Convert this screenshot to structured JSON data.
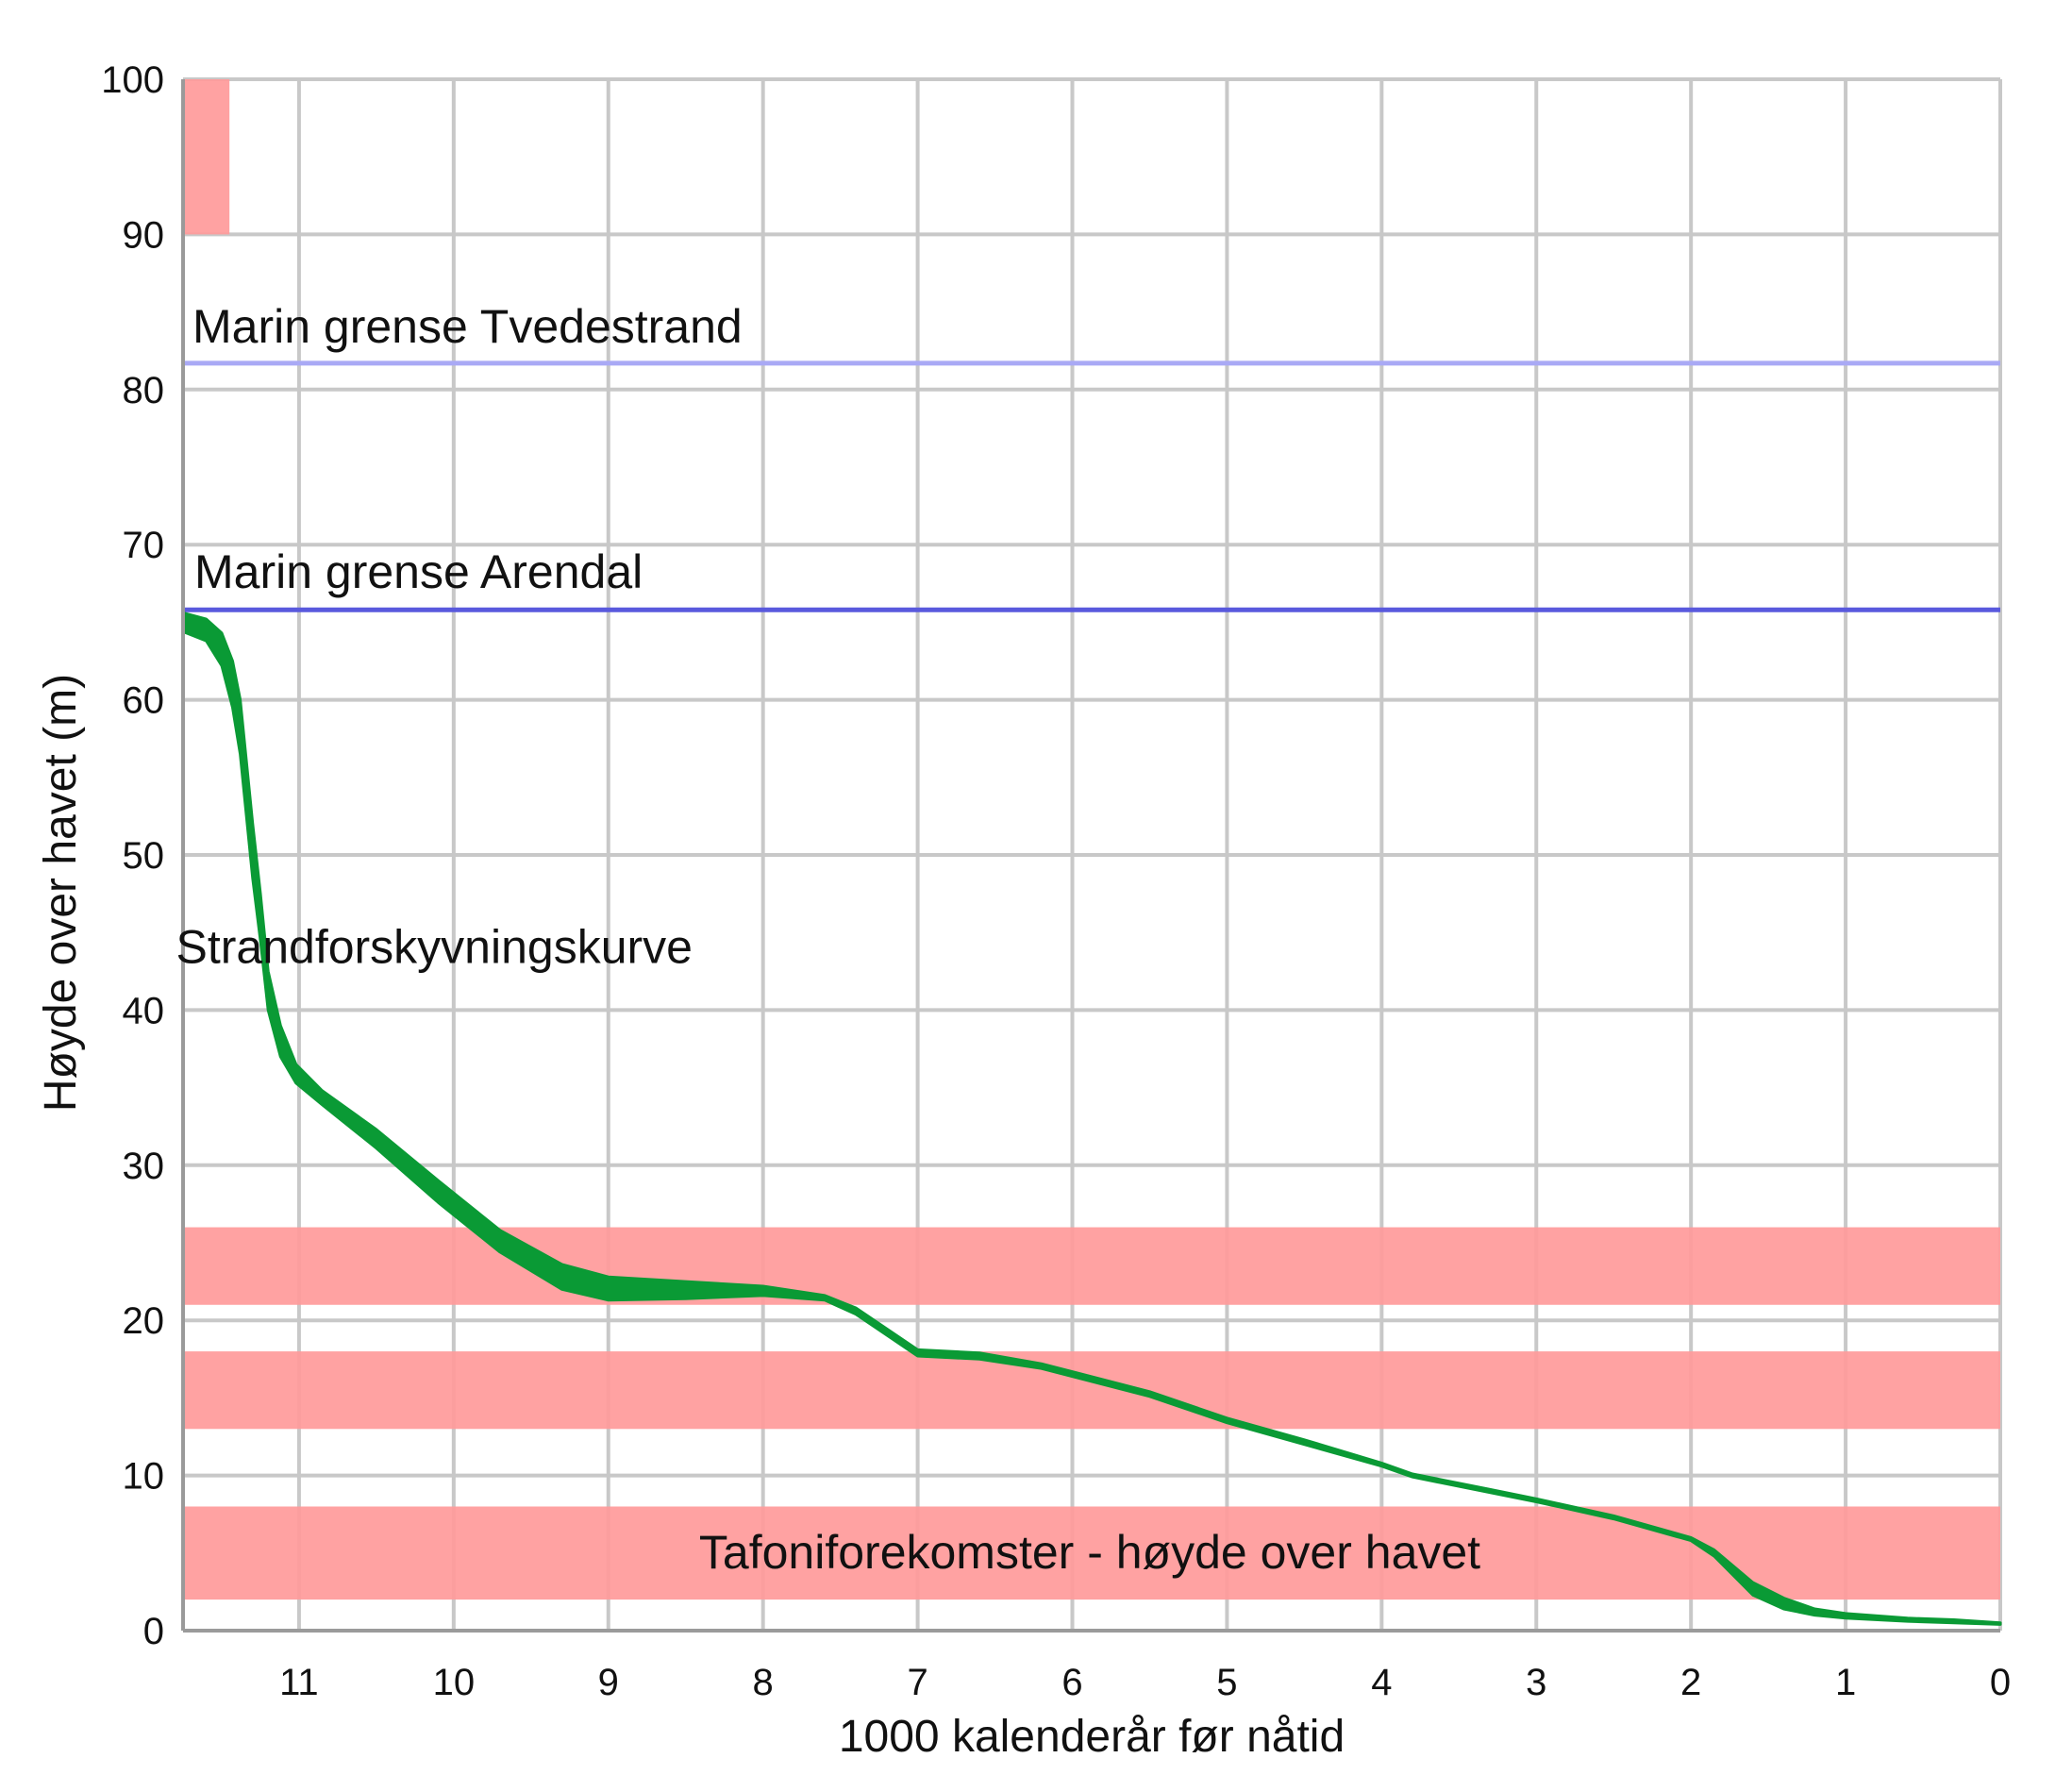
{
  "chart_data": {
    "type": "line",
    "xlabel": "1000 kalenderår før nåtid",
    "ylabel": "Høyde over havet (m)",
    "xlim": [
      11.75,
      0
    ],
    "ylim": [
      0,
      100
    ],
    "x_ticks": [
      11,
      10,
      9,
      8,
      7,
      6,
      5,
      4,
      3,
      2,
      1,
      0
    ],
    "y_ticks": [
      0,
      10,
      20,
      30,
      40,
      50,
      60,
      70,
      80,
      90,
      100
    ],
    "grid": true,
    "horizontal_lines": [
      {
        "label": "Marin grense Tvedestrand",
        "y": 81.7,
        "color": "#a9a9f5"
      },
      {
        "label": "Marin grense Arendal",
        "y": 65.8,
        "color": "#5959dd"
      }
    ],
    "bands": [
      {
        "x": [
          11.75,
          11.45
        ],
        "y": [
          90,
          100
        ],
        "color": "#ff9a9a"
      },
      {
        "x": [
          11.75,
          0
        ],
        "y": [
          21,
          26
        ],
        "color": "#ff9a9a"
      },
      {
        "x": [
          11.75,
          0
        ],
        "y": [
          13,
          18
        ],
        "color": "#ff9a9a"
      },
      {
        "x": [
          11.75,
          0
        ],
        "y": [
          2,
          8
        ],
        "color": "#ff9a9a",
        "label": "Tafoniforekomster - høyde over havet"
      }
    ],
    "series": [
      {
        "name": "Strandforskyvningskurve",
        "color": "#0a9a35",
        "upper": [
          [
            11.75,
            65.6
          ],
          [
            11.6,
            65.2
          ],
          [
            11.5,
            64.3
          ],
          [
            11.43,
            62.5
          ],
          [
            11.38,
            60
          ],
          [
            11.34,
            56
          ],
          [
            11.3,
            52
          ],
          [
            11.25,
            47.5
          ],
          [
            11.2,
            42.5
          ],
          [
            11.12,
            39
          ],
          [
            11.02,
            36.5
          ],
          [
            10.85,
            34.8
          ],
          [
            10.5,
            32.3
          ],
          [
            10.1,
            29
          ],
          [
            9.7,
            25.8
          ],
          [
            9.3,
            23.6
          ],
          [
            9.0,
            22.8
          ],
          [
            8.5,
            22.5
          ],
          [
            8.0,
            22.2
          ],
          [
            7.6,
            21.6
          ],
          [
            7.4,
            20.8
          ],
          [
            7.0,
            18.1
          ],
          [
            6.6,
            17.9
          ],
          [
            6.2,
            17.2
          ],
          [
            5.5,
            15.4
          ],
          [
            5.0,
            13.7
          ],
          [
            4.5,
            12.3
          ],
          [
            4.0,
            10.8
          ],
          [
            3.8,
            10.1
          ],
          [
            3.3,
            9.1
          ],
          [
            3.0,
            8.5
          ],
          [
            2.5,
            7.4
          ],
          [
            2.0,
            6.0
          ],
          [
            1.85,
            5.2
          ],
          [
            1.6,
            3.1
          ],
          [
            1.4,
            2.1
          ],
          [
            1.2,
            1.4
          ],
          [
            1.0,
            1.1
          ],
          [
            0.6,
            0.8
          ],
          [
            0.3,
            0.7
          ],
          [
            0,
            0.5
          ]
        ],
        "lower": [
          [
            11.75,
            64.4
          ],
          [
            11.6,
            63.8
          ],
          [
            11.5,
            62.2
          ],
          [
            11.43,
            59.5
          ],
          [
            11.38,
            56.5
          ],
          [
            11.34,
            52.5
          ],
          [
            11.3,
            48.5
          ],
          [
            11.25,
            44.5
          ],
          [
            11.2,
            40
          ],
          [
            11.12,
            37
          ],
          [
            11.02,
            35.3
          ],
          [
            10.85,
            33.9
          ],
          [
            10.5,
            31.1
          ],
          [
            10.1,
            27.6
          ],
          [
            9.7,
            24.4
          ],
          [
            9.3,
            22.0
          ],
          [
            9.0,
            21.3
          ],
          [
            8.5,
            21.4
          ],
          [
            8.0,
            21.6
          ],
          [
            7.6,
            21.3
          ],
          [
            7.4,
            20.4
          ],
          [
            7.0,
            17.7
          ],
          [
            6.6,
            17.5
          ],
          [
            6.2,
            16.9
          ],
          [
            5.5,
            15.1
          ],
          [
            5.0,
            13.4
          ],
          [
            4.5,
            12.0
          ],
          [
            4.0,
            10.6
          ],
          [
            3.8,
            9.9
          ],
          [
            3.3,
            8.9
          ],
          [
            3.0,
            8.3
          ],
          [
            2.5,
            7.2
          ],
          [
            2.0,
            5.8
          ],
          [
            1.85,
            4.8
          ],
          [
            1.6,
            2.3
          ],
          [
            1.4,
            1.4
          ],
          [
            1.2,
            1.0
          ],
          [
            1.0,
            0.8
          ],
          [
            0.6,
            0.6
          ],
          [
            0.3,
            0.5
          ],
          [
            0,
            0.4
          ]
        ]
      }
    ],
    "annotations": [
      {
        "text": "Strandforskyvningskurve",
        "x": 10.6,
        "y": 44
      }
    ]
  }
}
